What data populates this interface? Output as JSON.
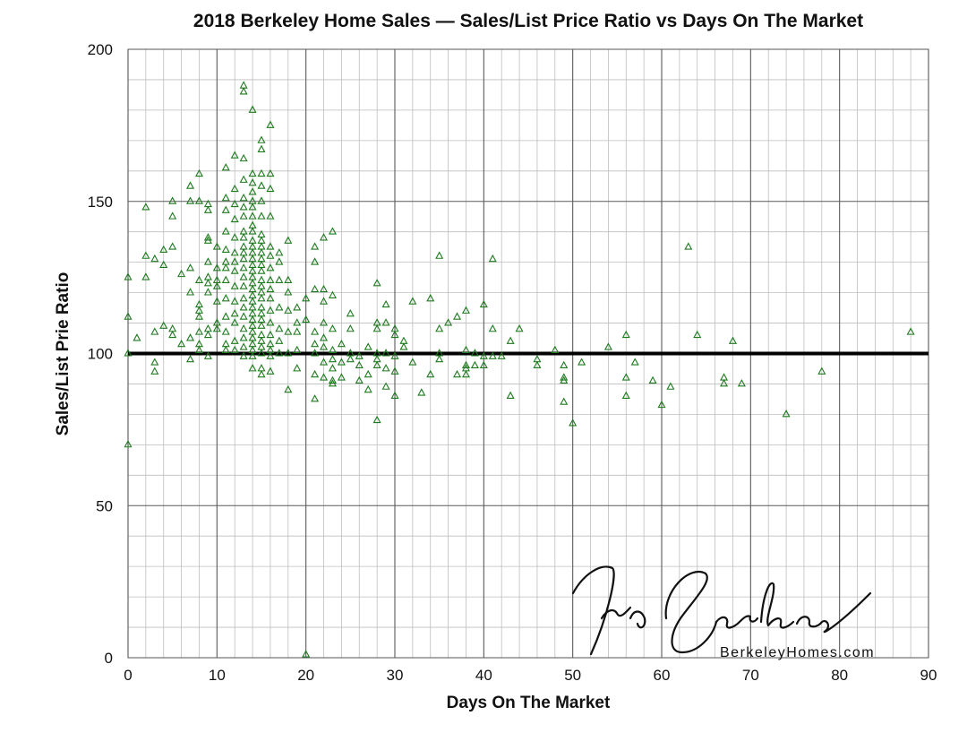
{
  "chart_data": {
    "type": "scatter",
    "title": "2018 Berkeley Home Sales — Sales/List Price Ratio vs Days On The Market",
    "xlabel": "Days On The Market",
    "ylabel": "Sales/List Prie Ratio",
    "xlim": [
      0,
      90
    ],
    "ylim": [
      0,
      200
    ],
    "x_ticks": [
      "0",
      "10",
      "20",
      "30",
      "40",
      "50",
      "60",
      "70",
      "80",
      "90"
    ],
    "y_ticks": [
      "0",
      "50",
      "100",
      "150",
      "200"
    ],
    "grid": true,
    "minor_grid": true,
    "reference_line": {
      "y": 100,
      "color": "#000000"
    },
    "marker": "triangle-open",
    "marker_color": "#1e7a1e",
    "watermark": {
      "signature": "Ira Serkes",
      "url": "BerkeleyHomes.com"
    },
    "points": [
      [
        0,
        125
      ],
      [
        0,
        112
      ],
      [
        0,
        100
      ],
      [
        0,
        70
      ],
      [
        1,
        105
      ],
      [
        2,
        148
      ],
      [
        2,
        132
      ],
      [
        2,
        125
      ],
      [
        3,
        131
      ],
      [
        3,
        107
      ],
      [
        3,
        97
      ],
      [
        3,
        94
      ],
      [
        4,
        134
      ],
      [
        4,
        129
      ],
      [
        4,
        109
      ],
      [
        5,
        150
      ],
      [
        5,
        145
      ],
      [
        5,
        135
      ],
      [
        5,
        108
      ],
      [
        5,
        106
      ],
      [
        6,
        126
      ],
      [
        6,
        103
      ],
      [
        7,
        155
      ],
      [
        7,
        150
      ],
      [
        7,
        128
      ],
      [
        7,
        120
      ],
      [
        7,
        105
      ],
      [
        7,
        98
      ],
      [
        8,
        159
      ],
      [
        8,
        150
      ],
      [
        8,
        124
      ],
      [
        8,
        116
      ],
      [
        8,
        114
      ],
      [
        8,
        112
      ],
      [
        8,
        107
      ],
      [
        8,
        103
      ],
      [
        8,
        101
      ],
      [
        9,
        149
      ],
      [
        9,
        147
      ],
      [
        9,
        138
      ],
      [
        9,
        137
      ],
      [
        9,
        130
      ],
      [
        9,
        125
      ],
      [
        9,
        123
      ],
      [
        9,
        120
      ],
      [
        9,
        108
      ],
      [
        9,
        106
      ],
      [
        9,
        99
      ],
      [
        10,
        135
      ],
      [
        10,
        128
      ],
      [
        10,
        124
      ],
      [
        10,
        122
      ],
      [
        10,
        117
      ],
      [
        10,
        110
      ],
      [
        10,
        108
      ],
      [
        11,
        161
      ],
      [
        11,
        151
      ],
      [
        11,
        147
      ],
      [
        11,
        140
      ],
      [
        11,
        134
      ],
      [
        11,
        130
      ],
      [
        11,
        128
      ],
      [
        11,
        124
      ],
      [
        11,
        118
      ],
      [
        11,
        112
      ],
      [
        11,
        107
      ],
      [
        11,
        103
      ],
      [
        11,
        101
      ],
      [
        12,
        165
      ],
      [
        12,
        154
      ],
      [
        12,
        149
      ],
      [
        12,
        144
      ],
      [
        12,
        138
      ],
      [
        12,
        133
      ],
      [
        12,
        130
      ],
      [
        12,
        127
      ],
      [
        12,
        122
      ],
      [
        12,
        117
      ],
      [
        12,
        113
      ],
      [
        12,
        110
      ],
      [
        12,
        104
      ],
      [
        12,
        101
      ],
      [
        13,
        188
      ],
      [
        13,
        186
      ],
      [
        13,
        164
      ],
      [
        13,
        157
      ],
      [
        13,
        151
      ],
      [
        13,
        148
      ],
      [
        13,
        145
      ],
      [
        13,
        140
      ],
      [
        13,
        138
      ],
      [
        13,
        135
      ],
      [
        13,
        133
      ],
      [
        13,
        131
      ],
      [
        13,
        128
      ],
      [
        13,
        125
      ],
      [
        13,
        122
      ],
      [
        13,
        118
      ],
      [
        13,
        115
      ],
      [
        13,
        112
      ],
      [
        13,
        108
      ],
      [
        13,
        105
      ],
      [
        13,
        102
      ],
      [
        13,
        99
      ],
      [
        14,
        180
      ],
      [
        14,
        159
      ],
      [
        14,
        156
      ],
      [
        14,
        153
      ],
      [
        14,
        150
      ],
      [
        14,
        148
      ],
      [
        14,
        145
      ],
      [
        14,
        142
      ],
      [
        14,
        140
      ],
      [
        14,
        137
      ],
      [
        14,
        135
      ],
      [
        14,
        133
      ],
      [
        14,
        131
      ],
      [
        14,
        129
      ],
      [
        14,
        127
      ],
      [
        14,
        125
      ],
      [
        14,
        123
      ],
      [
        14,
        121
      ],
      [
        14,
        119
      ],
      [
        14,
        117
      ],
      [
        14,
        115
      ],
      [
        14,
        113
      ],
      [
        14,
        111
      ],
      [
        14,
        109
      ],
      [
        14,
        107
      ],
      [
        14,
        105
      ],
      [
        14,
        103
      ],
      [
        14,
        101
      ],
      [
        14,
        99
      ],
      [
        14,
        95
      ],
      [
        15,
        170
      ],
      [
        15,
        167
      ],
      [
        15,
        159
      ],
      [
        15,
        155
      ],
      [
        15,
        150
      ],
      [
        15,
        145
      ],
      [
        15,
        139
      ],
      [
        15,
        137
      ],
      [
        15,
        135
      ],
      [
        15,
        133
      ],
      [
        15,
        131
      ],
      [
        15,
        129
      ],
      [
        15,
        127
      ],
      [
        15,
        124
      ],
      [
        15,
        122
      ],
      [
        15,
        120
      ],
      [
        15,
        118
      ],
      [
        15,
        115
      ],
      [
        15,
        113
      ],
      [
        15,
        111
      ],
      [
        15,
        109
      ],
      [
        15,
        106
      ],
      [
        15,
        104
      ],
      [
        15,
        102
      ],
      [
        15,
        100
      ],
      [
        15,
        95
      ],
      [
        15,
        93
      ],
      [
        16,
        175
      ],
      [
        16,
        159
      ],
      [
        16,
        154
      ],
      [
        16,
        145
      ],
      [
        16,
        135
      ],
      [
        16,
        132
      ],
      [
        16,
        128
      ],
      [
        16,
        124
      ],
      [
        16,
        121
      ],
      [
        16,
        118
      ],
      [
        16,
        114
      ],
      [
        16,
        110
      ],
      [
        16,
        106
      ],
      [
        16,
        103
      ],
      [
        16,
        101
      ],
      [
        16,
        99
      ],
      [
        16,
        94
      ],
      [
        17,
        133
      ],
      [
        17,
        130
      ],
      [
        17,
        124
      ],
      [
        17,
        115
      ],
      [
        17,
        108
      ],
      [
        17,
        104
      ],
      [
        17,
        100
      ],
      [
        18,
        137
      ],
      [
        18,
        124
      ],
      [
        18,
        120
      ],
      [
        18,
        114
      ],
      [
        18,
        107
      ],
      [
        18,
        100
      ],
      [
        18,
        88
      ],
      [
        19,
        115
      ],
      [
        19,
        110
      ],
      [
        19,
        107
      ],
      [
        19,
        101
      ],
      [
        19,
        95
      ],
      [
        20,
        118
      ],
      [
        20,
        111
      ],
      [
        20,
        1
      ],
      [
        21,
        135
      ],
      [
        21,
        130
      ],
      [
        21,
        121
      ],
      [
        21,
        107
      ],
      [
        21,
        103
      ],
      [
        21,
        100
      ],
      [
        21,
        93
      ],
      [
        21,
        85
      ],
      [
        22,
        138
      ],
      [
        22,
        121
      ],
      [
        22,
        117
      ],
      [
        22,
        110
      ],
      [
        22,
        105
      ],
      [
        22,
        102
      ],
      [
        22,
        97
      ],
      [
        22,
        92
      ],
      [
        23,
        140
      ],
      [
        23,
        119
      ],
      [
        23,
        108
      ],
      [
        23,
        101
      ],
      [
        23,
        98
      ],
      [
        23,
        95
      ],
      [
        23,
        91
      ],
      [
        23,
        90
      ],
      [
        24,
        103
      ],
      [
        24,
        97
      ],
      [
        24,
        92
      ],
      [
        25,
        113
      ],
      [
        25,
        108
      ],
      [
        25,
        100
      ],
      [
        25,
        98
      ],
      [
        26,
        99
      ],
      [
        26,
        96
      ],
      [
        26,
        91
      ],
      [
        27,
        102
      ],
      [
        27,
        93
      ],
      [
        27,
        88
      ],
      [
        28,
        123
      ],
      [
        28,
        110
      ],
      [
        28,
        108
      ],
      [
        28,
        100
      ],
      [
        28,
        98
      ],
      [
        28,
        96
      ],
      [
        28,
        78
      ],
      [
        29,
        116
      ],
      [
        29,
        110
      ],
      [
        29,
        100
      ],
      [
        29,
        95
      ],
      [
        29,
        89
      ],
      [
        30,
        108
      ],
      [
        30,
        106
      ],
      [
        30,
        99
      ],
      [
        30,
        94
      ],
      [
        30,
        86
      ],
      [
        31,
        104
      ],
      [
        31,
        102
      ],
      [
        32,
        117
      ],
      [
        32,
        97
      ],
      [
        33,
        87
      ],
      [
        34,
        118
      ],
      [
        34,
        93
      ],
      [
        35,
        132
      ],
      [
        35,
        108
      ],
      [
        35,
        100
      ],
      [
        35,
        98
      ],
      [
        36,
        110
      ],
      [
        37,
        112
      ],
      [
        37,
        93
      ],
      [
        38,
        114
      ],
      [
        38,
        101
      ],
      [
        38,
        96
      ],
      [
        38,
        95
      ],
      [
        38,
        93
      ],
      [
        39,
        100
      ],
      [
        39,
        96
      ],
      [
        40,
        116
      ],
      [
        40,
        99
      ],
      [
        40,
        96
      ],
      [
        41,
        131
      ],
      [
        41,
        108
      ],
      [
        41,
        99
      ],
      [
        42,
        99
      ],
      [
        43,
        104
      ],
      [
        43,
        86
      ],
      [
        44,
        108
      ],
      [
        46,
        98
      ],
      [
        46,
        96
      ],
      [
        48,
        101
      ],
      [
        49,
        96
      ],
      [
        49,
        92
      ],
      [
        49,
        91
      ],
      [
        49,
        84
      ],
      [
        50,
        77
      ],
      [
        51,
        97
      ],
      [
        54,
        102
      ],
      [
        56,
        106
      ],
      [
        56,
        92
      ],
      [
        56,
        86
      ],
      [
        57,
        97
      ],
      [
        59,
        91
      ],
      [
        60,
        83
      ],
      [
        61,
        89
      ],
      [
        63,
        135
      ],
      [
        64,
        106
      ],
      [
        67,
        92
      ],
      [
        67,
        90
      ],
      [
        68,
        104
      ],
      [
        69,
        90
      ],
      [
        74,
        80
      ],
      [
        78,
        94
      ],
      [
        88,
        107
      ]
    ]
  }
}
